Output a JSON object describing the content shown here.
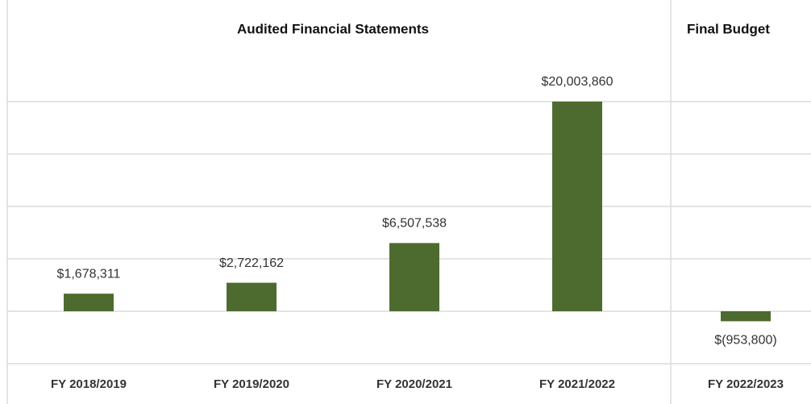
{
  "chart_data": {
    "type": "bar",
    "groups": [
      {
        "label": "Audited Financial Statements",
        "count": 4
      },
      {
        "label": "Final Budget",
        "count": 1
      }
    ],
    "categories": [
      "FY 2018/2019",
      "FY 2019/2020",
      "FY 2020/2021",
      "FY 2021/2022",
      "FY 2022/2023"
    ],
    "values": [
      1678311,
      2722162,
      6507538,
      20003860,
      -953800
    ],
    "value_labels": [
      "$1,678,311",
      "$2,722,162",
      "$6,507,538",
      "$20,003,860",
      "$(953,800)"
    ],
    "color": "#4e6b2f",
    "ylim": [
      -5000000,
      25000000
    ],
    "yticks": [
      -5000000,
      0,
      5000000,
      10000000,
      15000000,
      20000000
    ],
    "grid": true
  }
}
